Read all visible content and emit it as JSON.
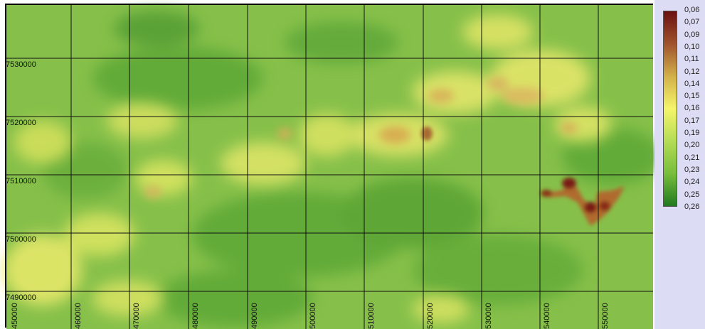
{
  "map": {
    "y_ticks": [
      "7530000",
      "7520000",
      "7510000",
      "7500000",
      "7490000"
    ],
    "x_ticks": [
      "450000",
      "460000",
      "470000",
      "480000",
      "490000",
      "500000",
      "510000",
      "520000",
      "530000",
      "540000",
      "550000"
    ]
  },
  "legend": {
    "labels": [
      "0,06",
      "0,07",
      "0,09",
      "0,10",
      "0,11",
      "0,12",
      "0,14",
      "0,15",
      "0,16",
      "0,17",
      "0,19",
      "0,20",
      "0,21",
      "0,23",
      "0,24",
      "0,25",
      "0,26"
    ],
    "ramp_colors": [
      "#6b1010",
      "#a0522d",
      "#d2b04a",
      "#f5f56a",
      "#b4dc55",
      "#78be3c",
      "#1f7a1f"
    ]
  }
}
